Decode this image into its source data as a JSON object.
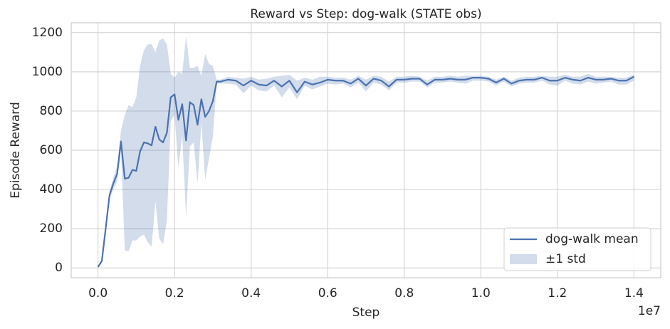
{
  "chart_data": {
    "type": "line",
    "title": "Reward vs Step: dog-walk (STATE obs)",
    "x_label": "Step",
    "y_label": "Episode Reward",
    "x_offset_label": "1e7",
    "x": [
      0,
      100000,
      200000,
      300000,
      400000,
      500000,
      600000,
      700000,
      800000,
      900000,
      1000000,
      1100000,
      1200000,
      1300000,
      1400000,
      1500000,
      1600000,
      1700000,
      1800000,
      1900000,
      2000000,
      2100000,
      2200000,
      2300000,
      2400000,
      2500000,
      2600000,
      2700000,
      2800000,
      2900000,
      3000000,
      3100000,
      3200000,
      3400000,
      3600000,
      3800000,
      4000000,
      4200000,
      4400000,
      4600000,
      4800000,
      5000000,
      5200000,
      5400000,
      5600000,
      5800000,
      6000000,
      6200000,
      6400000,
      6600000,
      6800000,
      7000000,
      7200000,
      7400000,
      7600000,
      7800000,
      8000000,
      8200000,
      8400000,
      8600000,
      8800000,
      9000000,
      9200000,
      9400000,
      9600000,
      9800000,
      10000000,
      10200000,
      10400000,
      10600000,
      10800000,
      11000000,
      11200000,
      11400000,
      11600000,
      11800000,
      12000000,
      12200000,
      12400000,
      12600000,
      12800000,
      13000000,
      13200000,
      13400000,
      13600000,
      13800000,
      14000000
    ],
    "series": [
      {
        "name": "dog-walk mean",
        "color": "#4c72b0",
        "values": [
          5,
          35,
          200,
          370,
          430,
          480,
          645,
          455,
          460,
          500,
          495,
          595,
          640,
          635,
          625,
          720,
          655,
          640,
          690,
          870,
          885,
          755,
          835,
          650,
          845,
          830,
          730,
          860,
          770,
          800,
          850,
          950,
          950,
          960,
          955,
          930,
          955,
          935,
          930,
          955,
          925,
          955,
          895,
          950,
          935,
          945,
          960,
          955,
          955,
          940,
          965,
          930,
          965,
          955,
          925,
          960,
          960,
          965,
          965,
          935,
          960,
          960,
          965,
          960,
          960,
          970,
          970,
          965,
          945,
          965,
          940,
          955,
          960,
          960,
          970,
          955,
          955,
          970,
          960,
          955,
          970,
          960,
          960,
          965,
          955,
          955,
          975
        ]
      },
      {
        "name": "±1 std",
        "color": "#4c72b0",
        "lower": [
          5,
          30,
          190,
          350,
          400,
          440,
          600,
          90,
          85,
          140,
          140,
          160,
          170,
          130,
          110,
          340,
          150,
          120,
          240,
          750,
          780,
          510,
          680,
          260,
          620,
          640,
          430,
          740,
          450,
          560,
          670,
          940,
          940,
          940,
          935,
          890,
          930,
          905,
          900,
          930,
          870,
          920,
          860,
          930,
          910,
          925,
          940,
          935,
          940,
          920,
          945,
          900,
          945,
          935,
          905,
          945,
          945,
          950,
          950,
          920,
          945,
          945,
          950,
          945,
          940,
          955,
          955,
          950,
          930,
          950,
          925,
          940,
          945,
          945,
          955,
          935,
          930,
          955,
          940,
          935,
          950,
          940,
          945,
          950,
          935,
          935,
          955
        ],
        "upper": [
          5,
          40,
          210,
          390,
          460,
          520,
          700,
          780,
          830,
          820,
          870,
          1030,
          1110,
          1140,
          1140,
          1100,
          1160,
          1170,
          1140,
          990,
          970,
          1000,
          990,
          1180,
          1020,
          1020,
          1030,
          980,
          1090,
          1040,
          1030,
          960,
          960,
          975,
          970,
          965,
          975,
          960,
          965,
          975,
          980,
          985,
          955,
          970,
          960,
          975,
          975,
          970,
          970,
          960,
          980,
          960,
          980,
          975,
          950,
          975,
          975,
          980,
          975,
          955,
          975,
          975,
          980,
          975,
          980,
          980,
          980,
          975,
          960,
          975,
          955,
          970,
          975,
          975,
          980,
          975,
          975,
          985,
          975,
          975,
          990,
          975,
          975,
          975,
          970,
          970,
          985
        ]
      }
    ],
    "xlim": [
      -700000,
      14700000
    ],
    "xticks": [
      {
        "value": 0,
        "label": "0.0"
      },
      {
        "value": 2000000,
        "label": "0.2"
      },
      {
        "value": 4000000,
        "label": "0.4"
      },
      {
        "value": 6000000,
        "label": "0.6"
      },
      {
        "value": 8000000,
        "label": "0.8"
      },
      {
        "value": 10000000,
        "label": "1.0"
      },
      {
        "value": 12000000,
        "label": "1.2"
      },
      {
        "value": 14000000,
        "label": "1.4"
      }
    ],
    "ylim": [
      -50,
      1250
    ],
    "yticks": [
      0,
      200,
      400,
      600,
      800,
      1000,
      1200
    ],
    "grid": true,
    "legend": "lower right"
  }
}
